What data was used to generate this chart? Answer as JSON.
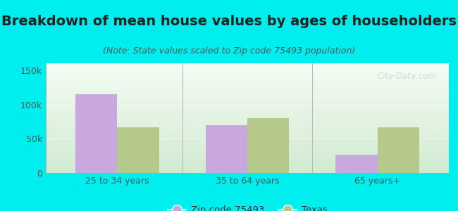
{
  "title": "Breakdown of mean house values by ages of householders",
  "subtitle": "(Note: State values scaled to Zip code 75493 population)",
  "categories": [
    "25 to 34 years",
    "35 to 64 years",
    "65 years+"
  ],
  "zip_values": [
    115000,
    70000,
    27000
  ],
  "state_values": [
    67000,
    80000,
    67000
  ],
  "zip_color": "#C9A8E0",
  "state_color": "#B5C98A",
  "background_outer": "#00EEEE",
  "background_inner_top": "#F5FAF5",
  "background_inner_bottom": "#D5EDD5",
  "ylim": [
    0,
    160000
  ],
  "yticks": [
    0,
    50000,
    100000,
    150000
  ],
  "ytick_labels": [
    "0",
    "50k",
    "100k",
    "150k"
  ],
  "bar_width": 0.32,
  "legend_zip_label": "Zip code 75493",
  "legend_state_label": "Texas",
  "watermark": "City-Data.com",
  "title_fontsize": 14,
  "subtitle_fontsize": 9,
  "tick_fontsize": 9
}
